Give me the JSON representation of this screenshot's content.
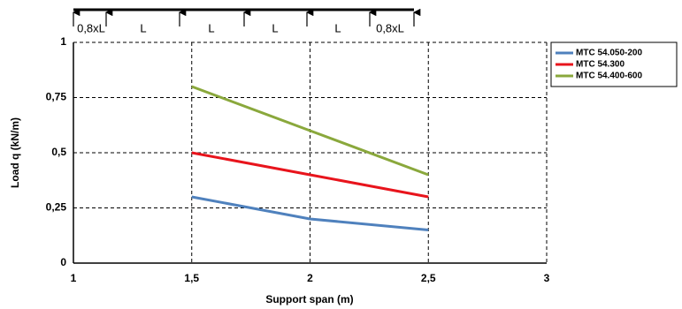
{
  "chart_data": {
    "type": "line",
    "xlabel": "Support span (m)",
    "ylabel": "Load q (kN/m)",
    "span_labels": [
      "0,8xL",
      "L",
      "L",
      "L",
      "L",
      "0,8xL"
    ],
    "x": [
      1.5,
      2,
      2.5
    ],
    "series": [
      {
        "name": "MTC 54.050-200",
        "color": "#4f81bd",
        "values": [
          0.3,
          0.2,
          0.15
        ]
      },
      {
        "name": "MTC 54.300",
        "color": "#e8141c",
        "values": [
          0.5,
          0.4,
          0.3
        ]
      },
      {
        "name": "MTC 54.400-600",
        "color": "#8aa83c",
        "values": [
          0.8,
          0.6,
          0.4
        ]
      }
    ],
    "xlim": [
      1,
      3
    ],
    "xticks": [
      1,
      {
        "value": 1.5,
        "label": "1,5"
      },
      2,
      {
        "value": 2.5,
        "label": "2,5"
      },
      3
    ],
    "ylim": [
      0,
      1
    ],
    "yticks": [
      0,
      {
        "value": 0.25,
        "label": "0,25"
      },
      {
        "value": 0.5,
        "label": "0,5"
      },
      {
        "value": 0.75,
        "label": "0,75"
      },
      1
    ],
    "grid": true,
    "legend": "right"
  }
}
